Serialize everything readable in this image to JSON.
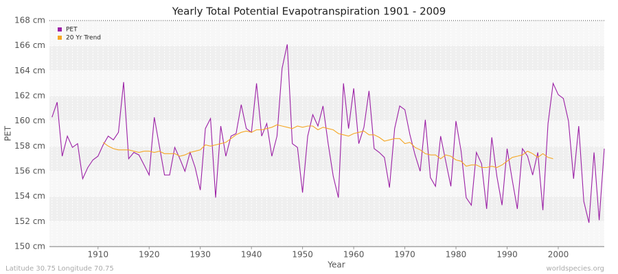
{
  "chart_data": {
    "type": "line",
    "title": "Yearly Total Potential Evapotranspiration 1901 - 2009",
    "x_label": "Year",
    "y_label": "PET",
    "footer_left": "Latitude 30.75 Longitude 70.75",
    "footer_right": "worldspecies.org",
    "legend": "top-left",
    "grid": true,
    "x": [
      1901,
      1902,
      1903,
      1904,
      1905,
      1906,
      1907,
      1908,
      1909,
      1910,
      1911,
      1912,
      1913,
      1914,
      1915,
      1916,
      1917,
      1918,
      1919,
      1920,
      1921,
      1922,
      1923,
      1924,
      1925,
      1926,
      1927,
      1928,
      1929,
      1930,
      1931,
      1932,
      1933,
      1934,
      1935,
      1936,
      1937,
      1938,
      1939,
      1940,
      1941,
      1942,
      1943,
      1944,
      1945,
      1946,
      1947,
      1948,
      1949,
      1950,
      1951,
      1952,
      1953,
      1954,
      1955,
      1956,
      1957,
      1958,
      1959,
      1960,
      1961,
      1962,
      1963,
      1964,
      1965,
      1966,
      1967,
      1968,
      1969,
      1970,
      1971,
      1972,
      1973,
      1974,
      1975,
      1976,
      1977,
      1978,
      1979,
      1980,
      1981,
      1982,
      1983,
      1984,
      1985,
      1986,
      1987,
      1988,
      1989,
      1990,
      1991,
      1992,
      1993,
      1994,
      1995,
      1996,
      1997,
      1998,
      1999,
      2000,
      2001,
      2002,
      2003,
      2004,
      2005,
      2006,
      2007,
      2008,
      2009
    ],
    "series": [
      {
        "name": "PET",
        "color": "#9b1fa5",
        "values": [
          160.3,
          161.5,
          157.2,
          158.8,
          157.9,
          158.2,
          155.4,
          156.3,
          156.9,
          157.2,
          158.1,
          158.8,
          158.5,
          159.1,
          163.1,
          157.0,
          157.5,
          157.3,
          156.5,
          155.7,
          160.3,
          158.0,
          155.7,
          155.7,
          157.9,
          157.0,
          156.0,
          157.5,
          156.3,
          154.5,
          159.4,
          160.2,
          153.9,
          159.6,
          157.2,
          158.8,
          159.0,
          161.3,
          159.4,
          159.1,
          163.0,
          158.8,
          159.8,
          157.2,
          158.8,
          164.2,
          166.1,
          158.2,
          157.9,
          154.3,
          158.8,
          160.5,
          159.6,
          161.2,
          158.2,
          155.6,
          153.9,
          163.0,
          159.4,
          162.6,
          158.2,
          159.5,
          162.4,
          157.8,
          157.5,
          157.1,
          154.7,
          159.4,
          161.2,
          160.9,
          158.9,
          157.3,
          156.0,
          160.1,
          155.5,
          154.8,
          158.8,
          156.8,
          154.8,
          160.0,
          157.6,
          153.9,
          153.3,
          157.5,
          156.6,
          153.0,
          158.7,
          155.6,
          153.3,
          157.8,
          155.3,
          153.0,
          157.8,
          157.2,
          155.7,
          157.5,
          152.9,
          159.8,
          163.0,
          162.1,
          161.8,
          160.0,
          155.4,
          159.6,
          153.6,
          151.9,
          157.5,
          152.1,
          157.8
        ]
      },
      {
        "name": "20 Yr Trend",
        "color": "#f5a623",
        "values": [
          null,
          null,
          null,
          null,
          null,
          null,
          null,
          null,
          null,
          null,
          158.3,
          158.0,
          157.8,
          157.7,
          157.7,
          157.7,
          157.6,
          157.5,
          157.6,
          157.6,
          157.5,
          157.6,
          157.4,
          157.4,
          157.4,
          157.2,
          157.3,
          157.5,
          157.6,
          157.7,
          158.1,
          158.0,
          158.1,
          158.2,
          158.3,
          158.6,
          158.9,
          159.1,
          159.2,
          159.1,
          159.3,
          159.3,
          159.4,
          159.5,
          159.7,
          159.6,
          159.5,
          159.4,
          159.6,
          159.5,
          159.6,
          159.6,
          159.3,
          159.5,
          159.4,
          159.3,
          159.0,
          158.9,
          158.8,
          159.0,
          159.1,
          159.2,
          158.9,
          158.9,
          158.7,
          158.4,
          158.5,
          158.6,
          158.6,
          158.2,
          158.3,
          157.9,
          157.7,
          157.4,
          157.3,
          157.3,
          157.0,
          157.3,
          157.2,
          156.9,
          156.8,
          156.4,
          156.5,
          156.5,
          156.3,
          156.3,
          156.4,
          156.3,
          156.5,
          156.8,
          157.1,
          157.2,
          157.3,
          157.6,
          157.4,
          157.1,
          157.4,
          157.1,
          157.0,
          null,
          null,
          null,
          null,
          null,
          null,
          null,
          null,
          null,
          null
        ]
      }
    ],
    "xlim": [
      1900.5,
      2009
    ],
    "xticks": [
      1910,
      1920,
      1930,
      1940,
      1950,
      1960,
      1970,
      1980,
      1990,
      2000
    ],
    "ylim": [
      150,
      168
    ],
    "yticks": [
      {
        "value": 150,
        "label": "150 cm"
      },
      {
        "value": 152,
        "label": "152 cm"
      },
      {
        "value": 154,
        "label": "154 cm"
      },
      {
        "value": 156,
        "label": "156 cm"
      },
      {
        "value": 158,
        "label": "158 cm"
      },
      {
        "value": 160,
        "label": "160 cm"
      },
      {
        "value": 162,
        "label": "162 cm"
      },
      {
        "value": 164,
        "label": "164 cm"
      },
      {
        "value": 166,
        "label": "166 cm"
      },
      {
        "value": 168,
        "label": "168 cm"
      }
    ]
  }
}
